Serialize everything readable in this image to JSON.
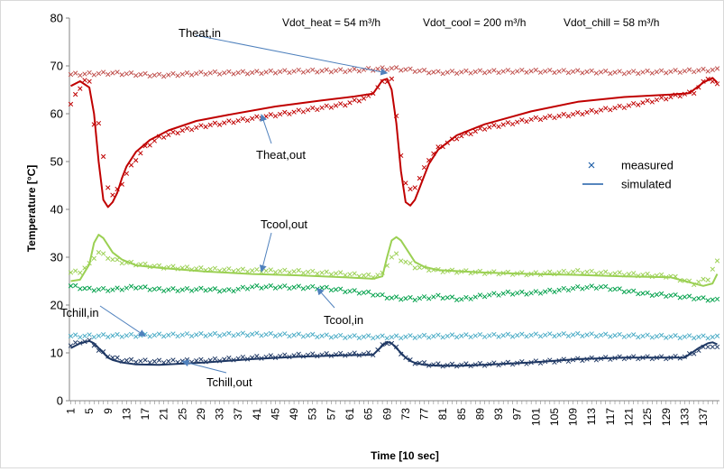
{
  "chart_data": {
    "type": "line",
    "title": "",
    "xlabel": "Time [10 sec]",
    "ylabel": "Temperature [°C]",
    "ylim": [
      0,
      80
    ],
    "yticks": [
      0,
      10,
      20,
      30,
      40,
      50,
      60,
      70,
      80
    ],
    "x_tick_labels": [
      "1",
      "5",
      "9",
      "13",
      "17",
      "21",
      "25",
      "29",
      "33",
      "37",
      "41",
      "45",
      "49",
      "53",
      "57",
      "61",
      "65",
      "69",
      "73",
      "77",
      "81",
      "85",
      "89",
      "93",
      "97",
      "101",
      "105",
      "109",
      "113",
      "117",
      "121",
      "125",
      "129",
      "133",
      "137"
    ],
    "x_range": [
      1,
      140
    ],
    "grid": "none",
    "header_notes": [
      "Vdot_heat = 54 m³/h",
      "Vdot_cool = 200 m³/h",
      "Vdot_chill = 58 m³/h"
    ],
    "legend": {
      "position": "right",
      "entries": [
        {
          "label": "measured",
          "marker": "x"
        },
        {
          "label": "simulated",
          "marker": "line"
        }
      ]
    },
    "colors": {
      "heat_in": "#c0504d",
      "heat_out": "#c00000",
      "cool_in": "#00a04a",
      "cool_out": "#9bd053",
      "chill_in": "#4bacc6",
      "chill_out": "#1f3864",
      "legend": "#1f5fa8",
      "arrow": "#4f81bd"
    },
    "annotations": [
      {
        "text": "Theat,in",
        "target_x": 69,
        "target_y": 68.5
      },
      {
        "text": "Theat,out",
        "target_x": 42,
        "target_y": 59.8
      },
      {
        "text": "Tcool,out",
        "target_x": 42,
        "target_y": 27.0
      },
      {
        "text": "Tcool,in",
        "target_x": 54,
        "target_y": 23.5
      },
      {
        "text": "Tchill,in",
        "target_x": 17,
        "target_y": 13.5
      },
      {
        "text": "Tchill,out",
        "target_x": 25,
        "target_y": 8.2
      }
    ],
    "series": [
      {
        "name": "Theat,in",
        "kind": "measured",
        "color_key": "heat_in",
        "x": [
          1,
          10,
          20,
          30,
          40,
          50,
          60,
          70,
          80,
          90,
          100,
          110,
          120,
          130,
          140
        ],
        "values": [
          68.2,
          68.5,
          68.0,
          68.5,
          68.6,
          68.9,
          69.0,
          69.5,
          68.6,
          68.8,
          68.9,
          68.8,
          68.6,
          68.8,
          69.2
        ]
      },
      {
        "name": "Theat,out",
        "kind": "measured",
        "color_key": "heat_out",
        "x": [
          1,
          2,
          3,
          4,
          5,
          6,
          7,
          8,
          9,
          10,
          11,
          12,
          13,
          15,
          17,
          20,
          25,
          30,
          40,
          50,
          60,
          65,
          68,
          70,
          71,
          72,
          73,
          74,
          75,
          76,
          77,
          78,
          80,
          84,
          90,
          100,
          110,
          120,
          130,
          135,
          138,
          140
        ],
        "values": [
          62.0,
          63.8,
          65.5,
          67.0,
          66.5,
          58.0,
          58.0,
          50.8,
          44.8,
          43.0,
          44.0,
          45.5,
          47.5,
          50.5,
          53.0,
          55.0,
          56.5,
          57.5,
          59.0,
          60.5,
          62.0,
          63.5,
          66.5,
          67.3,
          59.3,
          51.5,
          45.5,
          44.0,
          44.8,
          46.5,
          48.5,
          50.5,
          52.8,
          55.0,
          57.0,
          58.8,
          60.0,
          61.5,
          63.5,
          64.5,
          67.5,
          66.0
        ]
      },
      {
        "name": "Theat,out",
        "kind": "simulated",
        "color_key": "heat_out",
        "x": [
          1,
          3,
          5,
          6,
          7,
          8,
          9,
          10,
          11,
          12,
          13,
          15,
          18,
          22,
          28,
          35,
          45,
          55,
          62,
          66,
          68,
          69,
          70,
          71,
          72,
          73,
          74,
          75,
          76,
          77,
          78,
          80,
          84,
          90,
          100,
          110,
          120,
          130,
          134,
          137,
          139,
          140
        ],
        "values": [
          65.8,
          66.8,
          65.5,
          60.0,
          50.0,
          42.0,
          40.5,
          41.5,
          43.5,
          46.5,
          49.0,
          52.0,
          54.5,
          56.5,
          58.5,
          59.8,
          61.5,
          62.8,
          63.6,
          64.2,
          67.0,
          67.3,
          65.0,
          58.0,
          48.0,
          41.5,
          40.8,
          42.0,
          44.5,
          47.0,
          49.5,
          52.5,
          55.5,
          57.8,
          60.5,
          62.5,
          63.5,
          64.0,
          64.3,
          66.5,
          67.5,
          66.5
        ]
      },
      {
        "name": "Tcool,out",
        "kind": "measured",
        "color_key": "cool_out",
        "x": [
          1,
          3,
          5,
          6,
          7,
          8,
          10,
          12,
          15,
          20,
          30,
          40,
          50,
          60,
          66,
          68,
          69,
          70,
          71,
          72,
          73,
          75,
          80,
          90,
          100,
          110,
          120,
          130,
          135,
          138,
          139,
          140
        ],
        "values": [
          26.8,
          27.0,
          28.5,
          30.0,
          31.0,
          30.5,
          29.5,
          29.0,
          28.6,
          28.0,
          27.5,
          27.2,
          27.0,
          26.5,
          26.0,
          26.5,
          28.5,
          30.0,
          30.5,
          29.5,
          29.0,
          28.0,
          27.2,
          26.8,
          26.5,
          27.0,
          26.5,
          26.0,
          24.5,
          25.5,
          27.5,
          29.0
        ]
      },
      {
        "name": "Tcool,out",
        "kind": "simulated",
        "color_key": "cool_out",
        "x": [
          1,
          3,
          5,
          6,
          7,
          8,
          9,
          10,
          12,
          15,
          20,
          30,
          40,
          50,
          60,
          66,
          68,
          69,
          70,
          71,
          72,
          73,
          74,
          75,
          77,
          80,
          90,
          100,
          110,
          120,
          130,
          137,
          139,
          140
        ],
        "values": [
          25.0,
          25.3,
          28.5,
          33.0,
          34.7,
          34.0,
          32.5,
          31.0,
          29.5,
          28.3,
          27.8,
          27.0,
          26.5,
          26.2,
          25.8,
          25.5,
          26.0,
          30.0,
          33.5,
          34.2,
          33.5,
          32.0,
          30.5,
          29.0,
          28.0,
          27.3,
          26.8,
          26.5,
          26.3,
          26.0,
          25.8,
          24.0,
          24.5,
          26.5
        ]
      },
      {
        "name": "Tcool,in",
        "kind": "measured",
        "color_key": "cool_in",
        "x": [
          1,
          5,
          10,
          15,
          20,
          25,
          30,
          35,
          40,
          45,
          50,
          55,
          60,
          65,
          70,
          75,
          80,
          85,
          90,
          95,
          100,
          105,
          110,
          115,
          120,
          125,
          130,
          135,
          140
        ],
        "values": [
          24.0,
          23.3,
          23.2,
          23.8,
          23.2,
          23.2,
          23.3,
          23.0,
          23.8,
          23.8,
          23.7,
          23.6,
          23.0,
          22.5,
          21.5,
          21.3,
          21.8,
          21.2,
          22.0,
          22.5,
          22.5,
          23.0,
          23.6,
          23.8,
          23.0,
          22.3,
          22.0,
          21.5,
          21.0
        ]
      },
      {
        "name": "Tchill,in",
        "kind": "measured",
        "color_key": "chill_in",
        "x": [
          1,
          10,
          20,
          30,
          40,
          50,
          60,
          70,
          80,
          90,
          100,
          110,
          120,
          130,
          140
        ],
        "values": [
          13.5,
          13.6,
          13.7,
          13.8,
          13.9,
          13.7,
          13.4,
          13.3,
          13.5,
          13.6,
          13.7,
          13.8,
          13.6,
          13.4,
          13.3
        ]
      },
      {
        "name": "Tchill,out",
        "kind": "measured",
        "color_key": "chill_out",
        "x": [
          1,
          3,
          5,
          6,
          7,
          8,
          9,
          10,
          12,
          15,
          20,
          30,
          40,
          50,
          60,
          66,
          68,
          69,
          70,
          71,
          72,
          73,
          74,
          75,
          78,
          82,
          90,
          100,
          110,
          120,
          130,
          133,
          136,
          138,
          140
        ],
        "values": [
          11.5,
          12.3,
          12.4,
          11.8,
          10.5,
          10.0,
          9.5,
          9.0,
          8.5,
          8.3,
          8.2,
          8.4,
          9.0,
          9.5,
          9.7,
          9.8,
          11.5,
          12.2,
          12.0,
          11.0,
          10.0,
          9.0,
          8.3,
          8.0,
          7.6,
          7.4,
          7.6,
          8.0,
          8.6,
          9.0,
          9.0,
          9.2,
          10.5,
          11.5,
          11.0
        ]
      },
      {
        "name": "Tchill,out",
        "kind": "simulated",
        "color_key": "chill_out",
        "x": [
          1,
          3,
          5,
          6,
          7,
          8,
          9,
          10,
          12,
          15,
          20,
          30,
          40,
          50,
          60,
          66,
          68,
          69,
          70,
          71,
          72,
          73,
          74,
          75,
          77,
          80,
          85,
          90,
          100,
          110,
          120,
          130,
          133,
          136,
          138,
          139,
          140
        ],
        "values": [
          11.0,
          12.0,
          12.5,
          12.0,
          11.0,
          10.0,
          9.0,
          8.5,
          8.0,
          7.6,
          7.5,
          8.0,
          8.7,
          9.2,
          9.5,
          9.6,
          11.5,
          12.3,
          12.0,
          11.0,
          10.0,
          9.0,
          8.3,
          7.9,
          7.5,
          7.3,
          7.3,
          7.5,
          8.0,
          8.7,
          9.0,
          9.0,
          9.0,
          11.0,
          12.0,
          12.2,
          11.8
        ]
      }
    ]
  }
}
